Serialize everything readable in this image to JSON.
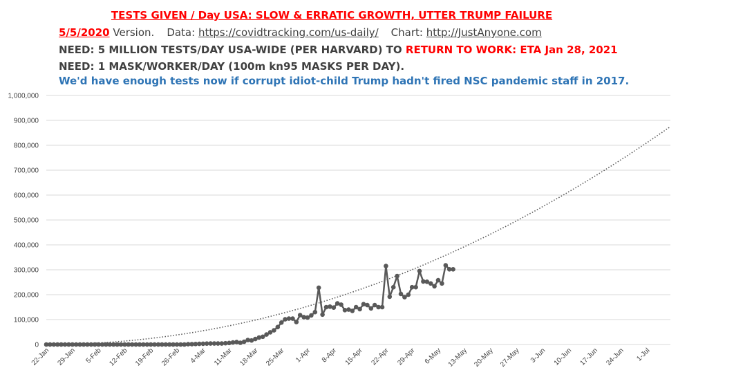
{
  "header": {
    "title": "TESTS GIVEN / Day USA:  SLOW & ERRATIC GROWTH, UTTER TRUMP FAILURE",
    "version_date": "5/5/2020",
    "version_label": "Version.",
    "data_label": "Data:",
    "data_url": "https://covidtracking.com/us-daily/",
    "chart_label": "Chart:",
    "chart_url": "http://JustAnyone.com",
    "need1_prefix": "NEED: 5 MILLION TESTS/DAY USA-WIDE (PER HARVARD) TO",
    "need1_emph": "RETURN TO WORK: ETA Jan 28, 2021",
    "need2": "NEED:  1 MASK/WORKER/DAY (100m kn95 MASKS PER DAY).",
    "note": "We'd have enough tests now if corrupt idiot-child Trump hadn't fired NSC pandemic staff in 2017."
  },
  "chart_data": {
    "type": "line",
    "title": "TESTS GIVEN / Day USA:  SLOW & ERRATIC GROWTH, UTTER TRUMP FAILURE",
    "xlabel": "",
    "ylabel": "",
    "ylim": [
      0,
      1000000
    ],
    "grid": true,
    "y_ticks": [
      "0",
      "100,000",
      "200,000",
      "300,000",
      "400,000",
      "500,000",
      "600,000",
      "700,000",
      "800,000",
      "900,000",
      "1,000,000"
    ],
    "x_ticks": [
      "22-Jan",
      "29-Jan",
      "5-Feb",
      "12-Feb",
      "19-Feb",
      "26-Feb",
      "4-Mar",
      "11-Mar",
      "18-Mar",
      "25-Mar",
      "1-Apr",
      "8-Apr",
      "15-Apr",
      "22-Apr",
      "29-Apr",
      "6-May",
      "13-May",
      "20-May",
      "27-May",
      "3-Jun",
      "10-Jun",
      "17-Jun",
      "24-Jun",
      "1-Jul"
    ],
    "series": [
      {
        "name": "",
        "color": "#595959",
        "start_date": "22-Jan",
        "values": [
          0,
          0,
          0,
          0,
          0,
          0,
          0,
          0,
          0,
          0,
          0,
          0,
          0,
          0,
          0,
          0,
          0,
          0,
          0,
          0,
          0,
          0,
          0,
          0,
          0,
          0,
          0,
          0,
          0,
          0,
          0,
          0,
          0,
          0,
          0,
          0,
          0,
          0,
          1000,
          1500,
          2000,
          2500,
          3000,
          3500,
          4000,
          4000,
          4000,
          4000,
          5000,
          6000,
          8000,
          10000,
          7000,
          11000,
          18000,
          16000,
          22000,
          28000,
          31000,
          40000,
          49000,
          57000,
          70000,
          88000,
          101000,
          104000,
          104000,
          90000,
          118000,
          110000,
          108000,
          117000,
          130000,
          228000,
          120000,
          150000,
          152000,
          148000,
          165000,
          160000,
          138000,
          140000,
          135000,
          150000,
          142000,
          162000,
          158000,
          145000,
          158000,
          150000,
          150000,
          315000,
          192000,
          230000,
          275000,
          203000,
          190000,
          200000,
          230000,
          230000,
          295000,
          253000,
          252000,
          245000,
          234000,
          258000,
          245000,
          318000,
          302000,
          302000
        ]
      }
    ],
    "trendline": {
      "type": "polynomial",
      "style": "dotted",
      "color": "#595959",
      "end_date": "6-Jul",
      "end_value": 875000
    }
  }
}
